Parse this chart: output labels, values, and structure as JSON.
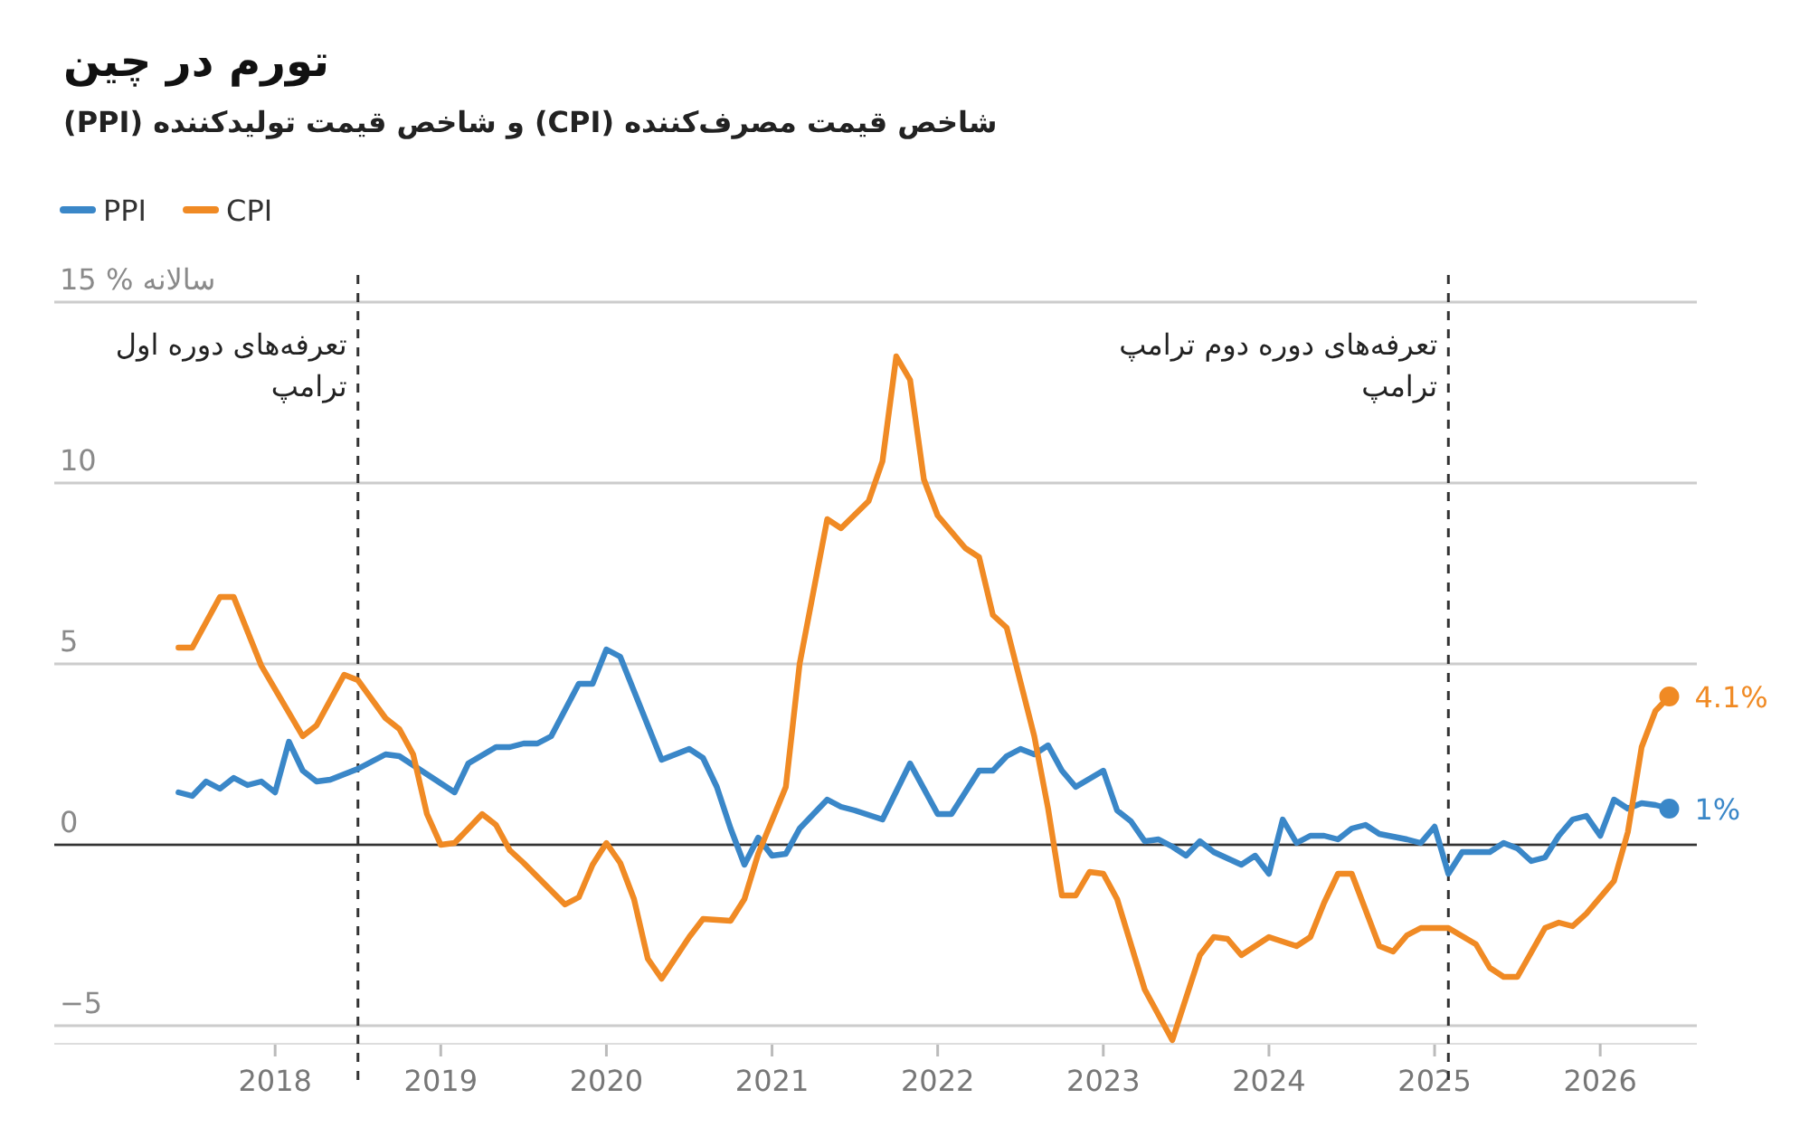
{
  "chart_data": {
    "type": "line",
    "title": "تورم در چین",
    "subtitle": "شاخص قیمت مصرف‌کننده (CPI) و شاخص قیمت تولیدکننده (PPI)",
    "xlim": [
      "2016-09",
      "2026-08"
    ],
    "xticks": [
      "2018",
      "2019",
      "2020",
      "2021",
      "2022",
      "2023",
      "2024",
      "2025",
      "2026"
    ],
    "ylim": [
      -5.5,
      15
    ],
    "yticks": [
      {
        "value": -5,
        "label": "−5"
      },
      0,
      5,
      10,
      {
        "value": 15,
        "label": "15 % سالانه"
      }
    ],
    "grid": "y",
    "legend": "top left",
    "ref_lines": [
      {
        "axis": "y",
        "value": 0,
        "color": "#333333",
        "line_style": "solid"
      },
      {
        "axis": "x",
        "value": "2018-07",
        "label": "تعرفه‌های دوره اول\nترامپ",
        "color": "#333333",
        "line_style": "dashed"
      },
      {
        "axis": "x",
        "value": "2025-02",
        "label": "تعرفه‌های دوره دوم ترامپ\nترامپ",
        "color": "#333333",
        "line_style": "dashed"
      }
    ],
    "series": [
      {
        "name": "PPI",
        "color": "#3a87c8",
        "x": [
          "2017-06",
          "2017-07",
          "2017-08",
          "2017-09",
          "2017-10",
          "2017-11",
          "2017-12",
          "2018-01",
          "2018-02",
          "2018-03",
          "2018-04",
          "2018-05",
          "2018-07",
          "2018-09",
          "2018-10",
          "2018-12",
          "2019-02",
          "2019-03",
          "2019-05",
          "2019-06",
          "2019-07",
          "2019-08",
          "2019-09",
          "2019-11",
          "2019-12",
          "2020-01",
          "2020-02",
          "2020-05",
          "2020-07",
          "2020-08",
          "2020-09",
          "2020-10",
          "2020-11",
          "2020-12",
          "2021-01",
          "2021-02",
          "2021-03",
          "2021-05",
          "2021-06",
          "2021-07",
          "2021-09",
          "2021-11",
          "2022-01",
          "2022-02",
          "2022-04",
          "2022-05",
          "2022-06",
          "2022-07",
          "2022-08",
          "2022-09",
          "2022-10",
          "2022-11",
          "2023-01",
          "2023-02",
          "2023-03",
          "2023-04",
          "2023-05",
          "2023-06",
          "2023-07",
          "2023-08",
          "2023-09",
          "2023-11",
          "2023-12",
          "2024-01",
          "2024-02",
          "2024-03",
          "2024-04",
          "2024-05",
          "2024-06",
          "2024-07",
          "2024-08",
          "2024-09",
          "2024-11",
          "2024-12",
          "2025-01",
          "2025-02",
          "2025-03",
          "2025-05",
          "2025-06",
          "2025-07",
          "2025-08",
          "2025-09",
          "2025-10",
          "2025-11",
          "2025-12",
          "2026-01",
          "2026-02",
          "2026-03",
          "2026-04",
          "2026-05",
          "2026-06"
        ],
        "values": [
          1.45,
          1.35,
          1.75,
          1.55,
          1.85,
          1.65,
          1.75,
          1.45,
          2.85,
          2.05,
          1.75,
          1.8,
          2.1,
          2.5,
          2.45,
          1.95,
          1.45,
          2.25,
          2.7,
          2.7,
          2.8,
          2.8,
          3.0,
          4.45,
          4.45,
          5.4,
          5.2,
          2.35,
          2.65,
          2.4,
          1.6,
          0.45,
          -0.55,
          0.2,
          -0.3,
          -0.25,
          0.45,
          1.25,
          1.05,
          0.95,
          0.7,
          2.25,
          0.85,
          0.85,
          2.05,
          2.05,
          2.45,
          2.65,
          2.5,
          2.75,
          2.05,
          1.6,
          2.05,
          0.95,
          0.65,
          0.1,
          0.15,
          -0.05,
          -0.3,
          0.1,
          -0.2,
          -0.55,
          -0.3,
          -0.8,
          0.7,
          0.05,
          0.25,
          0.25,
          0.15,
          0.45,
          0.55,
          0.3,
          0.15,
          0.05,
          0.5,
          -0.8,
          -0.2,
          -0.2,
          0.05,
          -0.1,
          -0.45,
          -0.35,
          0.25,
          0.7,
          0.8,
          0.25,
          1.25,
          1.0,
          1.15,
          1.1,
          1.0
        ],
        "value_labels": [
          null,
          null,
          null,
          null,
          null,
          null,
          null,
          null,
          null,
          null,
          null,
          null,
          null,
          null,
          null,
          null,
          null,
          null,
          null,
          null,
          null,
          null,
          null,
          null,
          null,
          null,
          null,
          null,
          null,
          null,
          null,
          null,
          null,
          null,
          null,
          null,
          null,
          null,
          null,
          null,
          null,
          null,
          null,
          null,
          null,
          null,
          null,
          null,
          null,
          null,
          null,
          null,
          null,
          null,
          null,
          null,
          null,
          null,
          null,
          null,
          null,
          null,
          null,
          null,
          null,
          null,
          null,
          null,
          null,
          null,
          null,
          null,
          null,
          null,
          null,
          null,
          null,
          null,
          null,
          null,
          null,
          null,
          null,
          null,
          null,
          null,
          null,
          null,
          null,
          null,
          "1%"
        ]
      },
      {
        "name": "CPI",
        "color": "#f08a24",
        "x": [
          "2017-06",
          "2017-07",
          "2017-09",
          "2017-10",
          "2017-12",
          "2018-03",
          "2018-04",
          "2018-06",
          "2018-07",
          "2018-09",
          "2018-10",
          "2018-11",
          "2018-12",
          "2019-01",
          "2019-02",
          "2019-04",
          "2019-05",
          "2019-06",
          "2019-07",
          "2019-10",
          "2019-11",
          "2019-12",
          "2020-01",
          "2020-02",
          "2020-03",
          "2020-04",
          "2020-05",
          "2020-07",
          "2020-08",
          "2020-10",
          "2020-11",
          "2020-12",
          "2021-02",
          "2021-03",
          "2021-05",
          "2021-06",
          "2021-08",
          "2021-09",
          "2021-10",
          "2021-11",
          "2021-12",
          "2022-01",
          "2022-03",
          "2022-04",
          "2022-05",
          "2022-06",
          "2022-08",
          "2022-09",
          "2022-10",
          "2022-11",
          "2022-12",
          "2023-01",
          "2023-02",
          "2023-04",
          "2023-06",
          "2023-08",
          "2023-09",
          "2023-10",
          "2023-11",
          "2024-01",
          "2024-03",
          "2024-04",
          "2024-05",
          "2024-06",
          "2024-07",
          "2024-09",
          "2024-10",
          "2024-11",
          "2024-12",
          "2025-02",
          "2025-04",
          "2025-05",
          "2025-06",
          "2025-07",
          "2025-09",
          "2025-10",
          "2025-11",
          "2025-12",
          "2026-02",
          "2026-03",
          "2026-04",
          "2026-05",
          "2026-06"
        ],
        "values": [
          5.45,
          5.45,
          6.85,
          6.85,
          4.95,
          3.0,
          3.3,
          4.7,
          4.55,
          3.5,
          3.2,
          2.5,
          0.85,
          0,
          0.05,
          0.85,
          0.55,
          -0.15,
          -0.5,
          -1.65,
          -1.45,
          -0.55,
          0.05,
          -0.5,
          -1.5,
          -3.15,
          -3.7,
          -2.55,
          -2.05,
          -2.1,
          -1.5,
          -0.25,
          1.6,
          5.0,
          9.0,
          8.75,
          9.5,
          10.6,
          13.5,
          12.85,
          10.1,
          9.1,
          8.2,
          7.95,
          6.35,
          6.0,
          3.0,
          1.0,
          -1.4,
          -1.4,
          -0.75,
          -0.8,
          -1.5,
          -4.0,
          -5.4,
          -3.05,
          -2.55,
          -2.6,
          -3.05,
          -2.55,
          -2.8,
          -2.55,
          -1.6,
          -0.8,
          -0.8,
          -2.8,
          -2.95,
          -2.5,
          -2.3,
          -2.3,
          -2.75,
          -3.4,
          -3.65,
          -3.65,
          -2.3,
          -2.15,
          -2.25,
          -1.9,
          -1.0,
          0.35,
          2.7,
          3.7,
          4.1
        ],
        "value_labels": [
          null,
          null,
          null,
          null,
          null,
          null,
          null,
          null,
          null,
          null,
          null,
          null,
          null,
          null,
          null,
          null,
          null,
          null,
          null,
          null,
          null,
          null,
          null,
          null,
          null,
          null,
          null,
          null,
          null,
          null,
          null,
          null,
          null,
          null,
          null,
          null,
          null,
          null,
          null,
          null,
          null,
          null,
          null,
          null,
          null,
          null,
          null,
          null,
          null,
          null,
          null,
          null,
          null,
          null,
          null,
          null,
          null,
          null,
          null,
          null,
          null,
          null,
          null,
          null,
          null,
          null,
          null,
          null,
          null,
          null,
          null,
          null,
          null,
          null,
          null,
          null,
          null,
          null,
          null,
          null,
          null,
          null,
          "4.1%"
        ]
      }
    ]
  }
}
